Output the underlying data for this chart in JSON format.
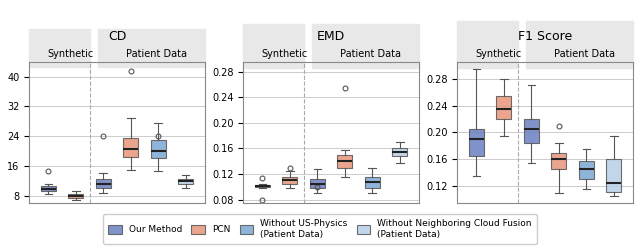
{
  "title_CD": "CD",
  "title_EMD": "EMD",
  "title_F1": "F1 Score",
  "cd_ylim": [
    6,
    44
  ],
  "cd_yticks": [
    8,
    16,
    24,
    32,
    40
  ],
  "emd_ylim": [
    0.075,
    0.295
  ],
  "emd_yticks": [
    0.08,
    0.12,
    0.16,
    0.2,
    0.24,
    0.28
  ],
  "f1_ylim": [
    0.095,
    0.305
  ],
  "f1_yticks": [
    0.12,
    0.16,
    0.2,
    0.24,
    0.28
  ],
  "color_our": "#6a7fc1",
  "color_pcn": "#e8967a",
  "color_no_physics": "#7ba7d4",
  "color_no_ncf": "#b8cfe8",
  "color_median": "#222222",
  "cd_data": {
    "our_syn": {
      "q1": 9.2,
      "median": 9.8,
      "q3": 10.5,
      "whislo": 8.5,
      "whishi": 11.0,
      "fliers": [
        14.5
      ]
    },
    "pcn_syn": {
      "q1": 7.3,
      "median": 7.8,
      "q3": 8.4,
      "whislo": 6.8,
      "whishi": 9.2,
      "fliers": []
    },
    "our_pat": {
      "q1": 10.0,
      "median": 11.2,
      "q3": 12.5,
      "whislo": 8.8,
      "whishi": 14.0,
      "fliers": [
        24.0
      ]
    },
    "pcn_pat": {
      "q1": 18.5,
      "median": 20.5,
      "q3": 23.5,
      "whislo": 15.0,
      "whishi": 29.0,
      "fliers": [
        41.5
      ]
    },
    "nophys_pat": {
      "q1": 18.0,
      "median": 20.0,
      "q3": 23.0,
      "whislo": 14.5,
      "whishi": 27.5,
      "fliers": [
        24.0
      ]
    },
    "noncf_pat": {
      "q1": 11.0,
      "median": 11.8,
      "q3": 12.5,
      "whislo": 10.0,
      "whishi": 13.5,
      "fliers": []
    }
  },
  "emd_data": {
    "our_syn": {
      "q1": 0.1,
      "median": 0.102,
      "q3": 0.103,
      "whislo": 0.098,
      "whishi": 0.105,
      "fliers": [
        0.114,
        0.08
      ]
    },
    "pcn_syn": {
      "q1": 0.105,
      "median": 0.11,
      "q3": 0.115,
      "whislo": 0.098,
      "whishi": 0.125,
      "fliers": [
        0.13
      ]
    },
    "our_pat": {
      "q1": 0.098,
      "median": 0.105,
      "q3": 0.112,
      "whislo": 0.09,
      "whishi": 0.128,
      "fliers": [
        0.1
      ]
    },
    "pcn_pat": {
      "q1": 0.13,
      "median": 0.14,
      "q3": 0.15,
      "whislo": 0.115,
      "whishi": 0.158,
      "fliers": [
        0.255
      ]
    },
    "nophys_pat": {
      "q1": 0.099,
      "median": 0.107,
      "q3": 0.115,
      "whislo": 0.09,
      "whishi": 0.13,
      "fliers": []
    },
    "noncf_pat": {
      "q1": 0.148,
      "median": 0.155,
      "q3": 0.16,
      "whislo": 0.138,
      "whishi": 0.17,
      "fliers": []
    }
  },
  "f1_data": {
    "our_syn": {
      "q1": 0.165,
      "median": 0.19,
      "q3": 0.205,
      "whislo": 0.135,
      "whishi": 0.295,
      "fliers": []
    },
    "pcn_syn": {
      "q1": 0.22,
      "median": 0.235,
      "q3": 0.255,
      "whislo": 0.195,
      "whishi": 0.28,
      "fliers": []
    },
    "our_pat": {
      "q1": 0.185,
      "median": 0.205,
      "q3": 0.22,
      "whislo": 0.155,
      "whishi": 0.27,
      "fliers": []
    },
    "pcn_pat": {
      "q1": 0.145,
      "median": 0.16,
      "q3": 0.17,
      "whislo": 0.11,
      "whishi": 0.185,
      "fliers": [
        0.21
      ]
    },
    "nophys_pat": {
      "q1": 0.13,
      "median": 0.145,
      "q3": 0.158,
      "whislo": 0.115,
      "whishi": 0.175,
      "fliers": []
    },
    "noncf_pat": {
      "q1": 0.112,
      "median": 0.125,
      "q3": 0.16,
      "whislo": 0.105,
      "whishi": 0.195,
      "fliers": []
    }
  },
  "section_labels": [
    "Synthetic",
    "Patient Data"
  ],
  "legend_labels": [
    "Our Method",
    "PCN",
    "Without US-Physics\n(Patient Data)",
    "Without Neighboring Cloud Fusion\n(Patient Data)"
  ],
  "bg_header": "#e8e8e8",
  "bg_plot": "#ffffff",
  "grid_color": "#cccccc"
}
